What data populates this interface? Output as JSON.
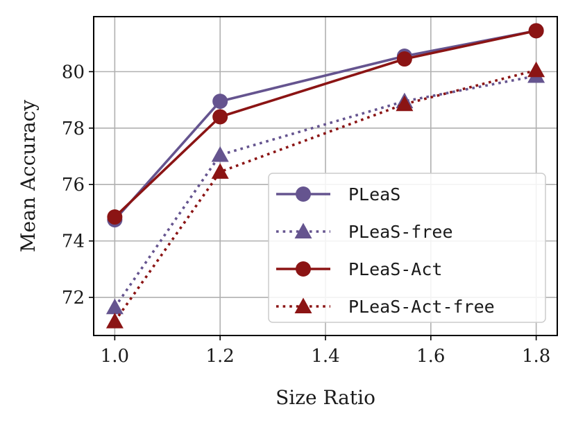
{
  "chart_data": {
    "type": "line",
    "title": "",
    "xlabel": "Size Ratio",
    "ylabel": "Mean Accuracy",
    "x": [
      1.0,
      1.2,
      1.55,
      1.8
    ],
    "xlim": [
      0.96,
      1.84
    ],
    "ylim": [
      70.65,
      81.95
    ],
    "xticks": [
      1.0,
      1.2,
      1.4,
      1.6,
      1.8
    ],
    "xtick_labels": [
      "1.0",
      "1.2",
      "1.4",
      "1.6",
      "1.8"
    ],
    "yticks": [
      72,
      74,
      76,
      78,
      80
    ],
    "ytick_labels": [
      "72",
      "74",
      "76",
      "78",
      "80"
    ],
    "grid": true,
    "legend_position": "lower-right",
    "series": [
      {
        "name": "PLeaS",
        "values": [
          74.75,
          78.95,
          80.55,
          81.45
        ],
        "color": "#65548f",
        "linestyle": "solid",
        "marker": "circle"
      },
      {
        "name": "PLeaS-free",
        "values": [
          71.65,
          77.05,
          78.95,
          79.85
        ],
        "color": "#65548f",
        "linestyle": "dotted",
        "marker": "triangle"
      },
      {
        "name": "PLeaS-Act",
        "values": [
          74.85,
          78.4,
          80.45,
          81.45
        ],
        "color": "#8b1414",
        "linestyle": "solid",
        "marker": "circle"
      },
      {
        "name": "PLeaS-Act-free",
        "values": [
          71.15,
          76.45,
          78.85,
          80.05
        ],
        "color": "#8b1414",
        "linestyle": "dotted",
        "marker": "triangle"
      }
    ]
  }
}
